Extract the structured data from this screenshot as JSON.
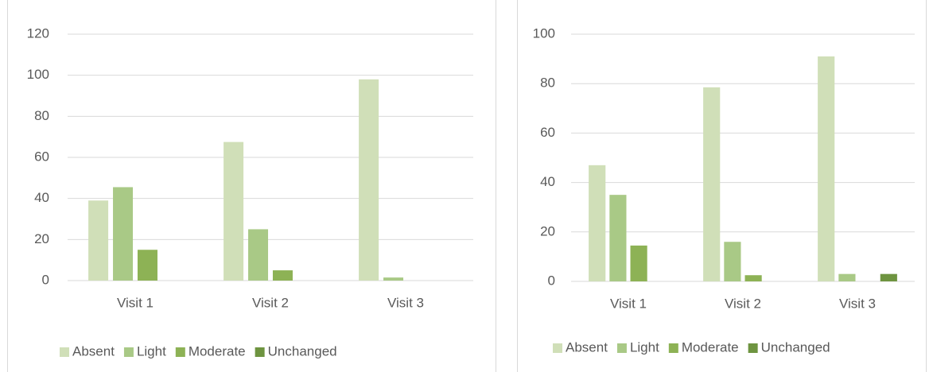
{
  "chart_data": [
    {
      "type": "bar",
      "categories": [
        "Visit 1",
        "Visit 2",
        "Visit 3"
      ],
      "series": [
        {
          "name": "Absent",
          "color": "#d0dfb8",
          "values": [
            39,
            67.5,
            98
          ]
        },
        {
          "name": "Light",
          "color": "#a9c986",
          "values": [
            45.5,
            25,
            1.5
          ]
        },
        {
          "name": "Moderate",
          "color": "#8db255",
          "values": [
            15,
            5,
            0
          ]
        },
        {
          "name": "Unchanged",
          "color": "#6e9440",
          "values": [
            0,
            0,
            0
          ]
        }
      ],
      "ylim": [
        0,
        120
      ],
      "yticks": [
        0,
        20,
        40,
        60,
        80,
        100,
        120
      ],
      "grid": true,
      "legend": "bottom"
    },
    {
      "type": "bar",
      "categories": [
        "Visit 1",
        "Visit 2",
        "Visit 3"
      ],
      "series": [
        {
          "name": "Absent",
          "color": "#d0dfb8",
          "values": [
            47,
            78.5,
            91
          ]
        },
        {
          "name": "Light",
          "color": "#a9c986",
          "values": [
            35,
            16,
            3
          ]
        },
        {
          "name": "Moderate",
          "color": "#8db255",
          "values": [
            14.5,
            2.5,
            0
          ]
        },
        {
          "name": "Unchanged",
          "color": "#6e9440",
          "values": [
            0,
            0,
            3
          ]
        }
      ],
      "ylim": [
        0,
        100
      ],
      "yticks": [
        0,
        20,
        40,
        60,
        80,
        100
      ],
      "grid": true,
      "legend": "bottom"
    }
  ]
}
